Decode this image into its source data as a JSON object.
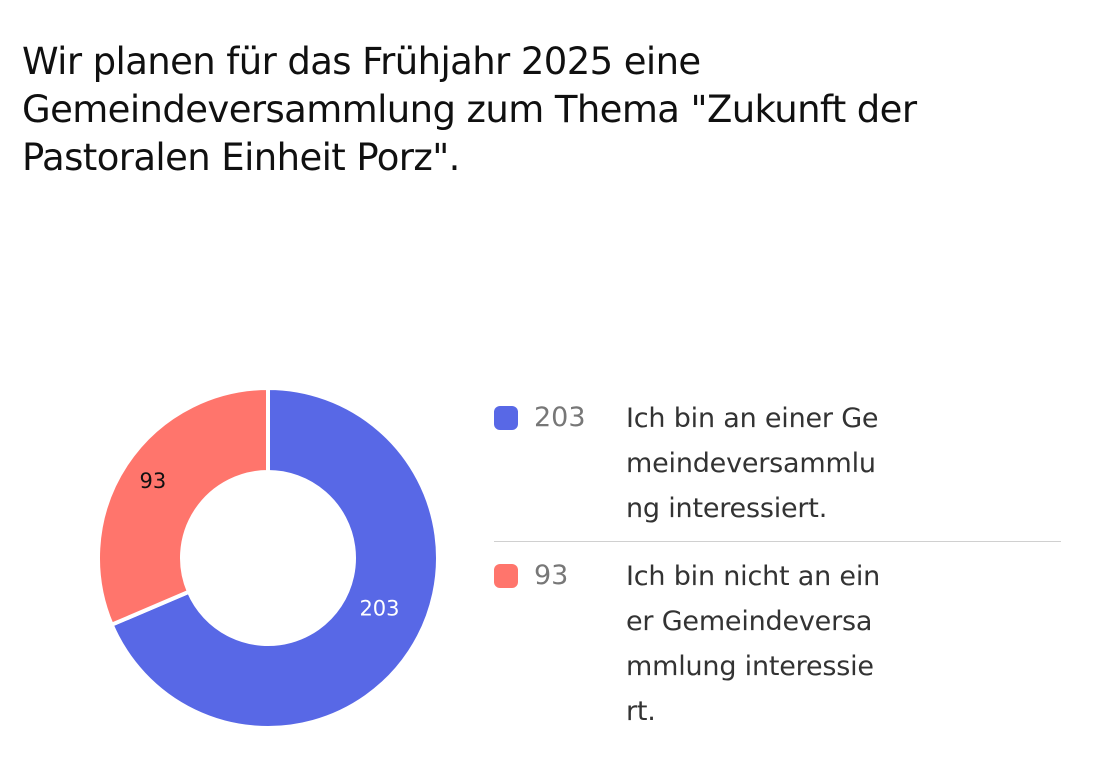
{
  "question": {
    "title": "Wir planen für das Frühjahr 2025 eine Gemeindeversammlung zum Thema \"Zukunft der Pastoralen Einheit Porz\"."
  },
  "colors": {
    "interested": "#5868e6",
    "not_interested": "#ff756c"
  },
  "legend": {
    "items": [
      {
        "value": "203",
        "label": "Ich bin an einer Gemeindeversammlung interessiert."
      },
      {
        "value": "93",
        "label": "Ich bin nicht an einer Gemeindeversammlung interessiert."
      }
    ]
  },
  "chart_data": {
    "type": "pie",
    "style": "donut",
    "labels": [
      "Ich bin an einer Gemeindeversammlung interessiert.",
      "Ich bin nicht an einer Gemeindeversammlung interessiert."
    ],
    "values": [
      203,
      93
    ],
    "data_labels": [
      "203",
      "93"
    ],
    "colors": [
      "#5868e6",
      "#ff756c"
    ],
    "legend": "right"
  }
}
